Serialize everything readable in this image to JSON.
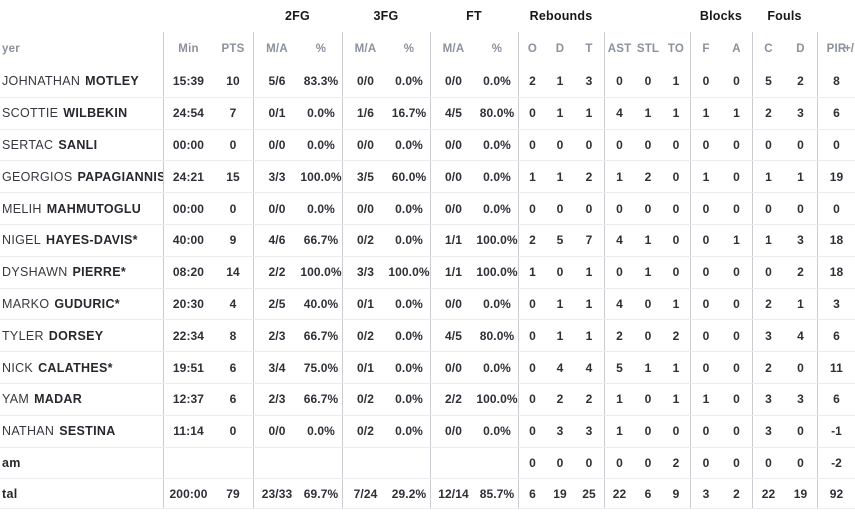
{
  "colors": {
    "group_header_text": "#17181c",
    "sub_header_text": "#8b919d",
    "data_text": "#2d3036",
    "vertical_line": "#caccd1",
    "horizontal_line": "#ececee",
    "background": "#ffffff"
  },
  "groups": [
    {
      "label": "2FG"
    },
    {
      "label": "3FG"
    },
    {
      "label": "FT"
    },
    {
      "label": "Rebounds"
    },
    {
      "label": "Blocks"
    },
    {
      "label": "Fouls"
    }
  ],
  "headers": {
    "player": "yer",
    "min": "Min",
    "pts": "PTS",
    "fg2_ma": "M/A",
    "fg2_pct": "%",
    "fg3_ma": "M/A",
    "fg3_pct": "%",
    "ft_ma": "M/A",
    "ft_pct": "%",
    "reb_o": "O",
    "reb_d": "D",
    "reb_t": "T",
    "ast": "AST",
    "stl": "STL",
    "to": "TO",
    "blk_f": "F",
    "blk_a": "A",
    "foul_c": "C",
    "foul_d": "D",
    "pir": "PIR",
    "plus_minus": "+/"
  },
  "rows": [
    {
      "type": "player",
      "first": "JOHNATHAN",
      "last": "MOTLEY",
      "min": "15:39",
      "pts": "10",
      "fg2_ma": "5/6",
      "fg2_pct": "83.3%",
      "fg3_ma": "0/0",
      "fg3_pct": "0.0%",
      "ft_ma": "0/0",
      "ft_pct": "0.0%",
      "reb_o": "2",
      "reb_d": "1",
      "reb_t": "3",
      "ast": "0",
      "stl": "0",
      "to": "1",
      "blk_f": "0",
      "blk_a": "0",
      "foul_c": "5",
      "foul_d": "2",
      "pir": "8"
    },
    {
      "type": "player",
      "first": "SCOTTIE",
      "last": "WILBEKIN",
      "min": "24:54",
      "pts": "7",
      "fg2_ma": "0/1",
      "fg2_pct": "0.0%",
      "fg3_ma": "1/6",
      "fg3_pct": "16.7%",
      "ft_ma": "4/5",
      "ft_pct": "80.0%",
      "reb_o": "0",
      "reb_d": "1",
      "reb_t": "1",
      "ast": "4",
      "stl": "1",
      "to": "1",
      "blk_f": "1",
      "blk_a": "1",
      "foul_c": "2",
      "foul_d": "3",
      "pir": "6"
    },
    {
      "type": "player",
      "first": "SERTAC",
      "last": "SANLI",
      "min": "00:00",
      "pts": "0",
      "fg2_ma": "0/0",
      "fg2_pct": "0.0%",
      "fg3_ma": "0/0",
      "fg3_pct": "0.0%",
      "ft_ma": "0/0",
      "ft_pct": "0.0%",
      "reb_o": "0",
      "reb_d": "0",
      "reb_t": "0",
      "ast": "0",
      "stl": "0",
      "to": "0",
      "blk_f": "0",
      "blk_a": "0",
      "foul_c": "0",
      "foul_d": "0",
      "pir": "0"
    },
    {
      "type": "player",
      "first": "GEORGIOS",
      "last": "PAPAGIANNIS*",
      "min": "24:21",
      "pts": "15",
      "fg2_ma": "3/3",
      "fg2_pct": "100.0%",
      "fg3_ma": "3/5",
      "fg3_pct": "60.0%",
      "ft_ma": "0/0",
      "ft_pct": "0.0%",
      "reb_o": "1",
      "reb_d": "1",
      "reb_t": "2",
      "ast": "1",
      "stl": "2",
      "to": "0",
      "blk_f": "1",
      "blk_a": "0",
      "foul_c": "1",
      "foul_d": "1",
      "pir": "19"
    },
    {
      "type": "player",
      "first": "MELIH",
      "last": "MAHMUTOGLU",
      "min": "00:00",
      "pts": "0",
      "fg2_ma": "0/0",
      "fg2_pct": "0.0%",
      "fg3_ma": "0/0",
      "fg3_pct": "0.0%",
      "ft_ma": "0/0",
      "ft_pct": "0.0%",
      "reb_o": "0",
      "reb_d": "0",
      "reb_t": "0",
      "ast": "0",
      "stl": "0",
      "to": "0",
      "blk_f": "0",
      "blk_a": "0",
      "foul_c": "0",
      "foul_d": "0",
      "pir": "0"
    },
    {
      "type": "player",
      "first": "NIGEL",
      "last": "HAYES-DAVIS*",
      "min": "40:00",
      "pts": "9",
      "fg2_ma": "4/6",
      "fg2_pct": "66.7%",
      "fg3_ma": "0/2",
      "fg3_pct": "0.0%",
      "ft_ma": "1/1",
      "ft_pct": "100.0%",
      "reb_o": "2",
      "reb_d": "5",
      "reb_t": "7",
      "ast": "4",
      "stl": "1",
      "to": "0",
      "blk_f": "0",
      "blk_a": "1",
      "foul_c": "1",
      "foul_d": "3",
      "pir": "18"
    },
    {
      "type": "player",
      "first": "DYSHAWN",
      "last": "PIERRE*",
      "min": "08:20",
      "pts": "14",
      "fg2_ma": "2/2",
      "fg2_pct": "100.0%",
      "fg3_ma": "3/3",
      "fg3_pct": "100.0%",
      "ft_ma": "1/1",
      "ft_pct": "100.0%",
      "reb_o": "1",
      "reb_d": "0",
      "reb_t": "1",
      "ast": "0",
      "stl": "1",
      "to": "0",
      "blk_f": "0",
      "blk_a": "0",
      "foul_c": "0",
      "foul_d": "2",
      "pir": "18"
    },
    {
      "type": "player",
      "first": "MARKO",
      "last": "GUDURIC*",
      "min": "20:30",
      "pts": "4",
      "fg2_ma": "2/5",
      "fg2_pct": "40.0%",
      "fg3_ma": "0/1",
      "fg3_pct": "0.0%",
      "ft_ma": "0/0",
      "ft_pct": "0.0%",
      "reb_o": "0",
      "reb_d": "1",
      "reb_t": "1",
      "ast": "4",
      "stl": "0",
      "to": "1",
      "blk_f": "0",
      "blk_a": "0",
      "foul_c": "2",
      "foul_d": "1",
      "pir": "3"
    },
    {
      "type": "player",
      "first": "TYLER",
      "last": "DORSEY",
      "min": "22:34",
      "pts": "8",
      "fg2_ma": "2/3",
      "fg2_pct": "66.7%",
      "fg3_ma": "0/2",
      "fg3_pct": "0.0%",
      "ft_ma": "4/5",
      "ft_pct": "80.0%",
      "reb_o": "0",
      "reb_d": "1",
      "reb_t": "1",
      "ast": "2",
      "stl": "0",
      "to": "2",
      "blk_f": "0",
      "blk_a": "0",
      "foul_c": "3",
      "foul_d": "4",
      "pir": "6"
    },
    {
      "type": "player",
      "first": "NICK",
      "last": "CALATHES*",
      "min": "19:51",
      "pts": "6",
      "fg2_ma": "3/4",
      "fg2_pct": "75.0%",
      "fg3_ma": "0/1",
      "fg3_pct": "0.0%",
      "ft_ma": "0/0",
      "ft_pct": "0.0%",
      "reb_o": "0",
      "reb_d": "4",
      "reb_t": "4",
      "ast": "5",
      "stl": "1",
      "to": "1",
      "blk_f": "0",
      "blk_a": "0",
      "foul_c": "2",
      "foul_d": "0",
      "pir": "11"
    },
    {
      "type": "player",
      "first": "YAM",
      "last": "MADAR",
      "min": "12:37",
      "pts": "6",
      "fg2_ma": "2/3",
      "fg2_pct": "66.7%",
      "fg3_ma": "0/2",
      "fg3_pct": "0.0%",
      "ft_ma": "2/2",
      "ft_pct": "100.0%",
      "reb_o": "0",
      "reb_d": "2",
      "reb_t": "2",
      "ast": "1",
      "stl": "0",
      "to": "1",
      "blk_f": "1",
      "blk_a": "0",
      "foul_c": "3",
      "foul_d": "3",
      "pir": "6"
    },
    {
      "type": "player",
      "first": "NATHAN",
      "last": "SESTINA",
      "min": "11:14",
      "pts": "0",
      "fg2_ma": "0/0",
      "fg2_pct": "0.0%",
      "fg3_ma": "0/2",
      "fg3_pct": "0.0%",
      "ft_ma": "0/0",
      "ft_pct": "0.0%",
      "reb_o": "0",
      "reb_d": "3",
      "reb_t": "3",
      "ast": "1",
      "stl": "0",
      "to": "0",
      "blk_f": "0",
      "blk_a": "0",
      "foul_c": "3",
      "foul_d": "0",
      "pir": "-1"
    },
    {
      "type": "team",
      "label": "am",
      "min": "",
      "pts": "",
      "fg2_ma": "",
      "fg2_pct": "",
      "fg3_ma": "",
      "fg3_pct": "",
      "ft_ma": "",
      "ft_pct": "",
      "reb_o": "0",
      "reb_d": "0",
      "reb_t": "0",
      "ast": "0",
      "stl": "0",
      "to": "2",
      "blk_f": "0",
      "blk_a": "0",
      "foul_c": "0",
      "foul_d": "0",
      "pir": "-2"
    },
    {
      "type": "total",
      "label": "tal",
      "min": "200:00",
      "pts": "79",
      "fg2_ma": "23/33",
      "fg2_pct": "69.7%",
      "fg3_ma": "7/24",
      "fg3_pct": "29.2%",
      "ft_ma": "12/14",
      "ft_pct": "85.7%",
      "reb_o": "6",
      "reb_d": "19",
      "reb_t": "25",
      "ast": "22",
      "stl": "6",
      "to": "9",
      "blk_f": "3",
      "blk_a": "2",
      "foul_c": "22",
      "foul_d": "19",
      "pir": "92"
    }
  ]
}
